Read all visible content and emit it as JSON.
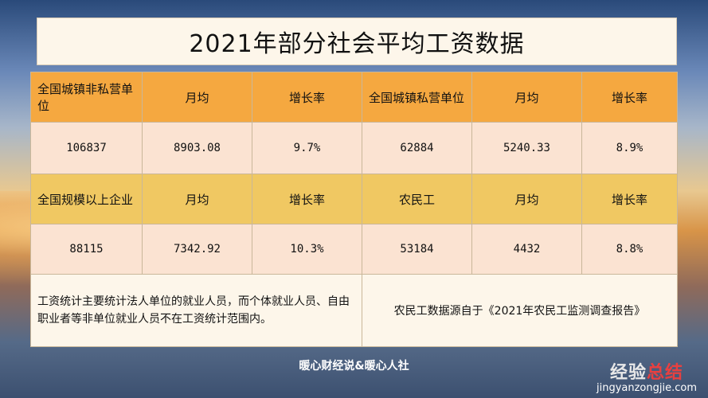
{
  "title": "2021年部分社会平均工资数据",
  "row1_headers": [
    "全国城镇非私营单位",
    "月均",
    "增长率",
    "全国城镇私营单位",
    "月均",
    "增长率"
  ],
  "row1_values": [
    "106837",
    "8903.08",
    "9.7%",
    "62884",
    "5240.33",
    "8.9%"
  ],
  "row2_headers": [
    "全国规模以上企业",
    "月均",
    "增长率",
    "农民工",
    "月均",
    "增长率"
  ],
  "row2_values": [
    "88115",
    "7342.92",
    "10.3%",
    "53184",
    "4432",
    "8.8%"
  ],
  "note_left": "工资统计主要统计法人单位的就业人员，而个体就业人员、自由职业者等非单位就业人员不在工资统计范围内。",
  "note_right": "农民工数据源自于《2021年农民工监测调查报告》",
  "caption": "暖心财经说&暖心人社",
  "watermark": {
    "main_a": "经验",
    "main_b": "总结",
    "sub": "jingyanzongjie.com"
  }
}
